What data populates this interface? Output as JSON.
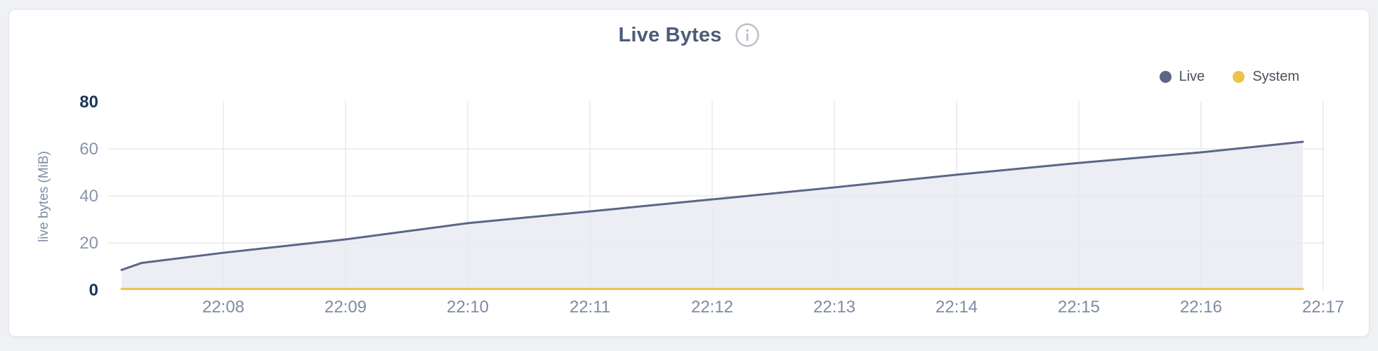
{
  "page": {
    "background_color": "#eff1f4"
  },
  "card": {
    "background_color": "#ffffff",
    "border_color": "#e4e6ea"
  },
  "header": {
    "title": "Live Bytes",
    "info_icon": "info-circle",
    "info_icon_color": "#b9bfc7",
    "title_color": "#4c5c7a"
  },
  "legend": {
    "position": "top-right",
    "items": [
      {
        "label": "Live",
        "color": "#5b6687"
      },
      {
        "label": "System",
        "color": "#ecc24a"
      }
    ]
  },
  "chart_data": {
    "type": "area",
    "title": "Live Bytes",
    "xlabel": "",
    "ylabel": "live bytes (MiB)",
    "ylim": [
      0,
      80
    ],
    "y_ticks": [
      0,
      20,
      40,
      60,
      80
    ],
    "x_ticks": [
      "22:08",
      "22:09",
      "22:10",
      "22:11",
      "22:12",
      "22:13",
      "22:14",
      "22:15",
      "22:16",
      "22:17"
    ],
    "grid_horizontal_at": [
      20,
      40,
      60
    ],
    "grid_vertical": "every minute tick",
    "legend_position": "top-right",
    "series": [
      {
        "name": "Live",
        "color": "#5b6687",
        "area_fill": "#eceef4",
        "x": [
          "22:07:10",
          "22:07:20",
          "22:08:00",
          "22:09:00",
          "22:10:00",
          "22:11:00",
          "22:12:00",
          "22:13:00",
          "22:14:00",
          "22:15:00",
          "22:16:00",
          "22:16:50"
        ],
        "values_mib": [
          8.5,
          11.5,
          15.8,
          21.5,
          28.4,
          33.4,
          38.5,
          43.6,
          49.0,
          54.0,
          58.5,
          63.0
        ]
      },
      {
        "name": "System",
        "color": "#ecc24a",
        "area_fill": null,
        "x": [
          "22:07:10",
          "22:16:50"
        ],
        "values_mib": [
          0.4,
          0.4
        ]
      }
    ]
  }
}
